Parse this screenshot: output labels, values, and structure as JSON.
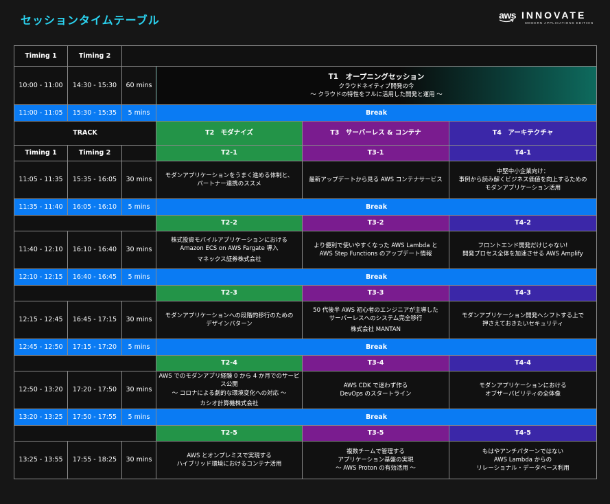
{
  "header": {
    "title": "セッションタイムテーブル"
  },
  "logo": {
    "aws": "aws",
    "innovate": "INNOVATE",
    "sub": "MODERN APPLICATIONS EDITION"
  },
  "columns": {
    "timing1": "Timing 1",
    "timing2": "Timing 2",
    "track": "TRACK"
  },
  "t1": {
    "timing1": "10:00 - 11:00",
    "timing2": "14:30 - 15:30",
    "duration": "60 mins",
    "title": "T1　オープニングセッション",
    "sub1": "クラウドネイティブ開発の今",
    "sub2": "〜 クラウドの特性をフルに活用した開発と運用 〜"
  },
  "tracks": {
    "t2": "T2　モダナイズ",
    "t3": "T3　サーバーレス & コンテナ",
    "t4": "T4　アーキテクチャ"
  },
  "break_label": "Break",
  "breaks": [
    {
      "timing1": "11:00 - 11:05",
      "timing2": "15:30 - 15:35",
      "duration": "5 mins"
    },
    {
      "timing1": "11:35 - 11:40",
      "timing2": "16:05 - 16:10",
      "duration": "5 mins"
    },
    {
      "timing1": "12:10 - 12:15",
      "timing2": "16:40 - 16:45",
      "duration": "5 mins"
    },
    {
      "timing1": "12:45 - 12:50",
      "timing2": "17:15 - 17:20",
      "duration": "5 mins"
    },
    {
      "timing1": "13:20 - 13:25",
      "timing2": "17:50 - 17:55",
      "duration": "5 mins"
    }
  ],
  "slots": [
    {
      "codes": [
        "T2-1",
        "T3-1",
        "T4-1"
      ],
      "timing1": "11:05 - 11:35",
      "timing2": "15:35 - 16:05",
      "duration": "30 mins",
      "t2": [
        "モダンアプリケーションをうまく進める体制と、",
        "パートナー連携のススメ"
      ],
      "t2_company": "",
      "t3": [
        "最新アップデートから見る AWS コンテナサービス"
      ],
      "t3_company": "",
      "t4": [
        "中堅中小企業向け：",
        "事例から読み解くビジネス価値を向上するための",
        "モダンアプリケーション活用"
      ],
      "t4_company": ""
    },
    {
      "codes": [
        "T2-2",
        "T3-2",
        "T4-2"
      ],
      "timing1": "11:40 - 12:10",
      "timing2": "16:10 - 16:40",
      "duration": "30 mins",
      "t2": [
        "株式投資モバイルアプリケーションにおける",
        "Amazon ECS on AWS Fargate 導入"
      ],
      "t2_company": "マネックス証券株式会社",
      "t3": [
        "より便利で使いやすくなった AWS Lambda と",
        "AWS Step Functions のアップデート情報"
      ],
      "t3_company": "",
      "t4": [
        "フロントエンド開発だけじゃない!",
        "開発プロセス全体を加速させる AWS Amplify"
      ],
      "t4_company": ""
    },
    {
      "codes": [
        "T2-3",
        "T3-3",
        "T4-3"
      ],
      "timing1": "12:15 - 12:45",
      "timing2": "16:45 - 17:15",
      "duration": "30 mins",
      "t2": [
        "モダンアプリケーションへの段階的移行のための",
        "デザインパターン"
      ],
      "t2_company": "",
      "t3": [
        "50 代後半 AWS 初心者のエンジニアが主導した",
        "サーバーレスへのシステム完全移行"
      ],
      "t3_company": "株式会社 MANTAN",
      "t4": [
        "モダンアプリケーション開発へシフトする上で",
        "押さえておきたいセキュリティ"
      ],
      "t4_company": ""
    },
    {
      "codes": [
        "T2-4",
        "T3-4",
        "T4-4"
      ],
      "timing1": "12:50 - 13:20",
      "timing2": "17:20 - 17:50",
      "duration": "30 mins",
      "t2": [
        "AWS でのモダンアプリ経験 0 から 4 か月でのサービス公開",
        "〜 コロナによる劇的な環境変化への対応 〜"
      ],
      "t2_company": "カシオ計算機株式会社",
      "t3": [
        "AWS CDK で迷わず作る",
        "DevOps のスタートライン"
      ],
      "t3_company": "",
      "t4": [
        "モダンアプリケーションにおける",
        "オブザーバビリティの全体像"
      ],
      "t4_company": ""
    },
    {
      "codes": [
        "T2-5",
        "T3-5",
        "T4-5"
      ],
      "timing1": "13:25 - 13:55",
      "timing2": "17:55 - 18:25",
      "duration": "30 mins",
      "t2": [
        "AWS とオンプレミスで実現する",
        "ハイブリッド環境におけるコンテナ活用"
      ],
      "t2_company": "",
      "t3": [
        "複数チームで管理する",
        "アプリケーション基盤の実現",
        "〜 AWS Proton の有効活用 〜"
      ],
      "t3_company": "",
      "t4": [
        "もはやアンチパターンではない",
        "AWS Lambda からの",
        "リレーショナル・データベース利用"
      ],
      "t4_company": ""
    }
  ],
  "colors": {
    "accent_title": "#2bd3f0",
    "break": "#0a7bf3",
    "t2": "#239448",
    "t3": "#7a1c8f",
    "t4": "#3b27a8",
    "t1_gradient_end": "#0e6b5e"
  }
}
